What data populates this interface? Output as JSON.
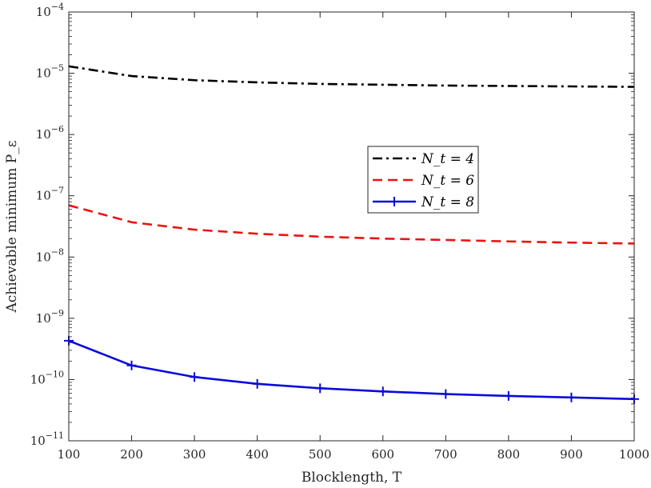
{
  "chart_data": {
    "type": "line",
    "xlabel": "Blocklength, T",
    "ylabel": "Achievable minimum P_ε",
    "xlim": [
      100,
      1000
    ],
    "ylim": [
      1e-11,
      0.0001
    ],
    "yscale": "log",
    "grid": false,
    "legend_position": "center-right",
    "x": [
      100,
      200,
      300,
      400,
      500,
      600,
      700,
      800,
      900,
      1000
    ],
    "x_ticks": [
      "100",
      "200",
      "300",
      "400",
      "500",
      "600",
      "700",
      "800",
      "900",
      "1000"
    ],
    "y_ticks": [
      {
        "base": "10",
        "exp": "−11",
        "value": 1e-11
      },
      {
        "base": "10",
        "exp": "−10",
        "value": 1e-10
      },
      {
        "base": "10",
        "exp": "−9",
        "value": 1e-09
      },
      {
        "base": "10",
        "exp": "−8",
        "value": 1e-08
      },
      {
        "base": "10",
        "exp": "−7",
        "value": 1e-07
      },
      {
        "base": "10",
        "exp": "−6",
        "value": 1e-06
      },
      {
        "base": "10",
        "exp": "−5",
        "value": 1e-05
      },
      {
        "base": "10",
        "exp": "−4",
        "value": 0.0001
      }
    ],
    "series": [
      {
        "name": "N_t = 4",
        "color": "#000000",
        "style": "dashdot",
        "marker": "none",
        "values": [
          1.3e-05,
          9e-06,
          7.7e-06,
          7.1e-06,
          6.7e-06,
          6.5e-06,
          6.3e-06,
          6.2e-06,
          6.1e-06,
          6e-06
        ]
      },
      {
        "name": "N_t = 6",
        "color": "#ee1111",
        "style": "dashed",
        "marker": "none",
        "values": [
          7e-08,
          3.7e-08,
          2.8e-08,
          2.4e-08,
          2.15e-08,
          2e-08,
          1.9e-08,
          1.8e-08,
          1.72e-08,
          1.66e-08
        ]
      },
      {
        "name": "N_t = 8",
        "color": "#0a0adc",
        "style": "solid",
        "marker": "plus",
        "values": [
          4.3e-10,
          1.7e-10,
          1.1e-10,
          8.5e-11,
          7.2e-11,
          6.4e-11,
          5.8e-11,
          5.4e-11,
          5.1e-11,
          4.8e-11
        ]
      }
    ]
  }
}
